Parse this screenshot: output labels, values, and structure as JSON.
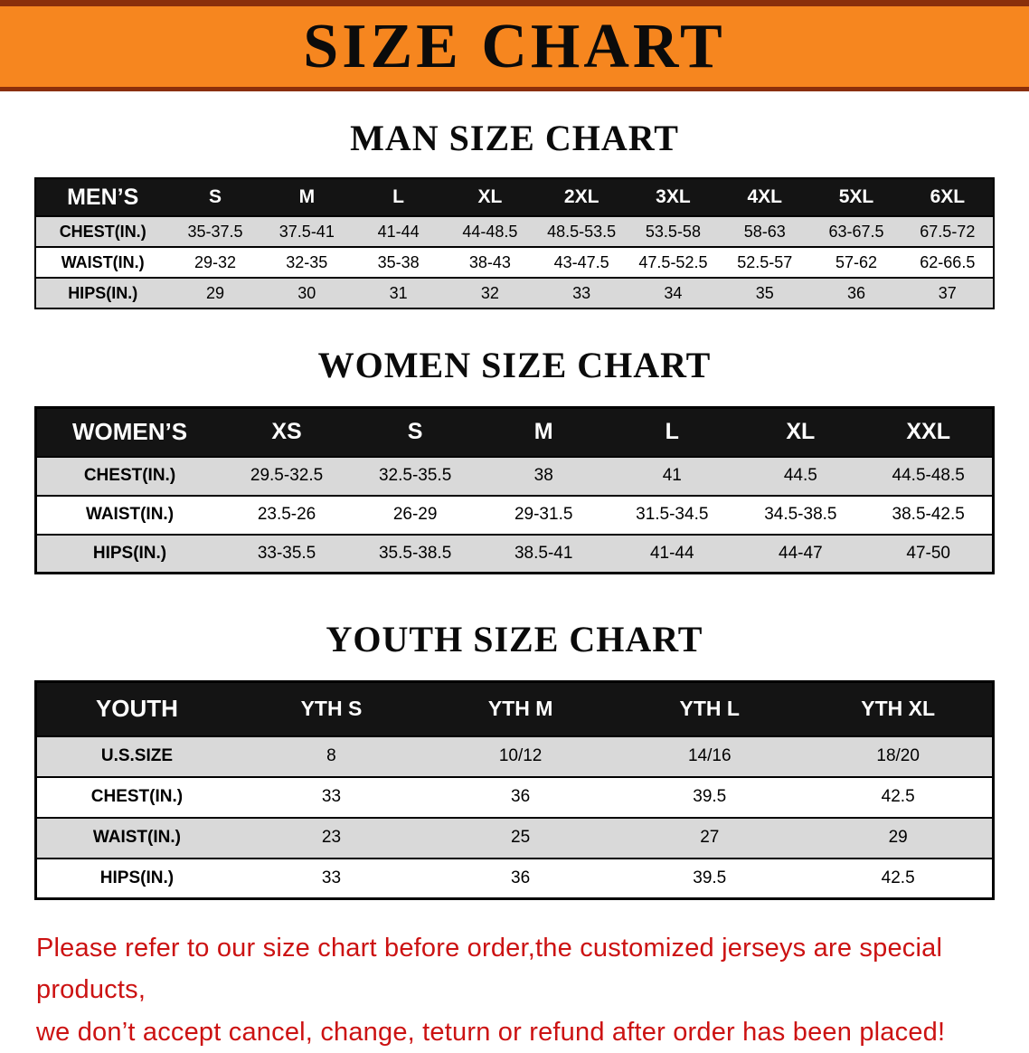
{
  "banner": {
    "title": "SIZE CHART"
  },
  "colors": {
    "banner_bg": "#f6861f",
    "banner_border": "#8a2f0b",
    "table_header_bg": "#141414",
    "row_alt": "#d9d9d9",
    "notice_text": "#cc1212"
  },
  "sections": [
    {
      "id": "men",
      "heading": "MAN SIZE CHART",
      "table": {
        "header": [
          "MEN’S",
          "S",
          "M",
          "L",
          "XL",
          "2XL",
          "3XL",
          "4XL",
          "5XL",
          "6XL"
        ],
        "rows": [
          [
            "CHEST(IN.)",
            "35-37.5",
            "37.5-41",
            "41-44",
            "44-48.5",
            "48.5-53.5",
            "53.5-58",
            "58-63",
            "63-67.5",
            "67.5-72"
          ],
          [
            "WAIST(IN.)",
            "29-32",
            "32-35",
            "35-38",
            "38-43",
            "43-47.5",
            "47.5-52.5",
            "52.5-57",
            "57-62",
            "62-66.5"
          ],
          [
            "HIPS(IN.)",
            "29",
            "30",
            "31",
            "32",
            "33",
            "34",
            "35",
            "36",
            "37"
          ]
        ]
      }
    },
    {
      "id": "women",
      "heading": "WOMEN SIZE CHART",
      "table": {
        "header": [
          "WOMEN’S",
          "XS",
          "S",
          "M",
          "L",
          "XL",
          "XXL"
        ],
        "rows": [
          [
            "CHEST(IN.)",
            "29.5-32.5",
            "32.5-35.5",
            "38",
            "41",
            "44.5",
            "44.5-48.5"
          ],
          [
            "WAIST(IN.)",
            "23.5-26",
            "26-29",
            "29-31.5",
            "31.5-34.5",
            "34.5-38.5",
            "38.5-42.5"
          ],
          [
            "HIPS(IN.)",
            "33-35.5",
            "35.5-38.5",
            "38.5-41",
            "41-44",
            "44-47",
            "47-50"
          ]
        ]
      }
    },
    {
      "id": "youth",
      "heading": "YOUTH SIZE CHART",
      "table": {
        "header": [
          "YOUTH",
          "YTH S",
          "YTH M",
          "YTH L",
          "YTH XL"
        ],
        "rows": [
          [
            "U.S.SIZE",
            "8",
            "10/12",
            "14/16",
            "18/20"
          ],
          [
            "CHEST(IN.)",
            "33",
            "36",
            "39.5",
            "42.5"
          ],
          [
            "WAIST(IN.)",
            "23",
            "25",
            "27",
            "29"
          ],
          [
            "HIPS(IN.)",
            "33",
            "36",
            "39.5",
            "42.5"
          ]
        ]
      }
    }
  ],
  "footer": {
    "line1": "Please refer to our size chart before order,the customized jerseys are special products,",
    "line2": "we don’t accept cancel, change, teturn or refund after order has been placed!"
  }
}
